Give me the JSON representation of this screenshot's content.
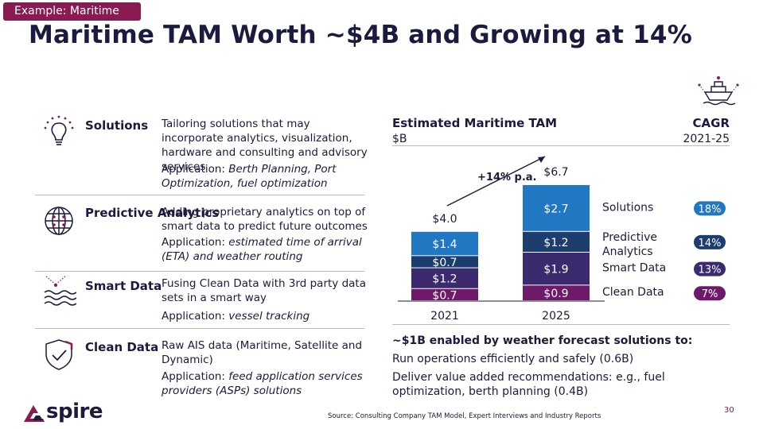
{
  "tag": "Example: Maritime",
  "title": "Maritime TAM Worth ~$4B and Growing at 14%",
  "colors": {
    "accent": "#8a1a52",
    "navy": "#1b1a3f",
    "blue": "#2277c2",
    "dark_blue": "#1c3d6e",
    "purple": "#3b2a6e",
    "magenta": "#6e1a6a"
  },
  "rows": [
    {
      "name": "Solutions",
      "icon": "lightbulb-icon",
      "desc": "Tailoring solutions that may incorporate analytics, visualization, hardware and consulting and advisory services",
      "app_label": "Application: ",
      "app_value": "Berth Planning, Port Optimization, fuel optimization"
    },
    {
      "name": "Predictive Analytics",
      "icon": "globe-icon",
      "desc": "Adding proprietary analytics on top of smart data to predict future outcomes",
      "app_label": "Application: ",
      "app_value": "estimated time of arrival (ETA) and weather routing"
    },
    {
      "name": "Smart Data",
      "icon": "waves-icon",
      "desc": "Fusing Clean Data with 3rd party data sets in a smart way",
      "app_label": "Application: ",
      "app_value": "vessel tracking"
    },
    {
      "name": "Clean Data",
      "icon": "shield-check-icon",
      "desc": "Raw AIS data (Maritime, Satellite and Dynamic)",
      "app_label": "Application: ",
      "app_value": "feed application services providers (ASPs) solutions"
    }
  ],
  "chart_data": {
    "type": "bar",
    "stacked": true,
    "title": "Estimated Maritime TAM",
    "unit": "$B",
    "cagr_label": "CAGR",
    "cagr_period": "2021-25",
    "categories": [
      "2021",
      "2025"
    ],
    "totals": [
      "$4.0",
      "$6.7"
    ],
    "growth_annotation": "+14% p.a.",
    "series": [
      {
        "name": "Clean Data",
        "values": [
          0.7,
          0.9
        ],
        "labels": [
          "$0.7",
          "$0.9"
        ],
        "color": "#6e1a6a",
        "cagr": "7%"
      },
      {
        "name": "Smart Data",
        "values": [
          1.2,
          1.9
        ],
        "labels": [
          "$1.2",
          "$1.9"
        ],
        "color": "#3b2a6e",
        "cagr": "13%"
      },
      {
        "name": "Predictive Analytics",
        "values": [
          0.7,
          1.2
        ],
        "labels": [
          "$0.7",
          "$1.2"
        ],
        "color": "#1c3d6e",
        "cagr": "14%"
      },
      {
        "name": "Solutions",
        "values": [
          1.4,
          2.7
        ],
        "labels": [
          "$1.4",
          "$2.7"
        ],
        "color": "#2277c2",
        "cagr": "18%"
      }
    ]
  },
  "notes": {
    "head": "~$1B enabled by weather forecast solutions to:",
    "line1": "Run operations efficiently and safely (0.6B)",
    "line2": "Deliver value added recommendations: e.g., fuel optimization, berth planning (0.4B)"
  },
  "logo": "spire",
  "source": "Source: Consulting Company TAM Model, Expert Interviews and Industry Reports",
  "page_number": "30"
}
